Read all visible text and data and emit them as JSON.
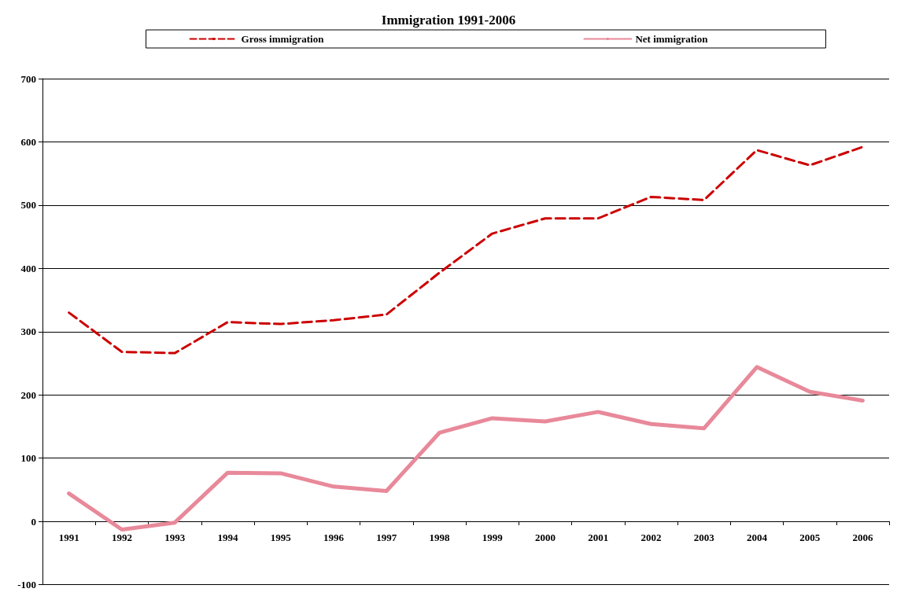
{
  "chart_data": {
    "type": "line",
    "title": "Immigration 1991-2006",
    "categories": [
      "1991",
      "1992",
      "1993",
      "1994",
      "1995",
      "1996",
      "1997",
      "1998",
      "1999",
      "2000",
      "2001",
      "2002",
      "2003",
      "2004",
      "2005",
      "2006"
    ],
    "series": [
      {
        "name": "Gross immigration",
        "color": "#cc0000",
        "line_style": "dashed",
        "values": [
          330,
          268,
          266,
          315,
          312,
          318,
          327,
          393,
          455,
          479,
          479,
          513,
          508,
          587,
          563,
          592
        ]
      },
      {
        "name": "Net immigration",
        "color": "#e8899a",
        "line_style": "solid",
        "values": [
          44,
          -13,
          -2,
          77,
          76,
          55,
          48,
          140,
          163,
          158,
          173,
          154,
          147,
          244,
          205,
          191
        ]
      }
    ],
    "ylim": [
      -100,
      700
    ],
    "yticks": [
      -100,
      0,
      100,
      200,
      300,
      400,
      500,
      600,
      700
    ],
    "grid": "y",
    "legend": "top",
    "marker": "none"
  }
}
